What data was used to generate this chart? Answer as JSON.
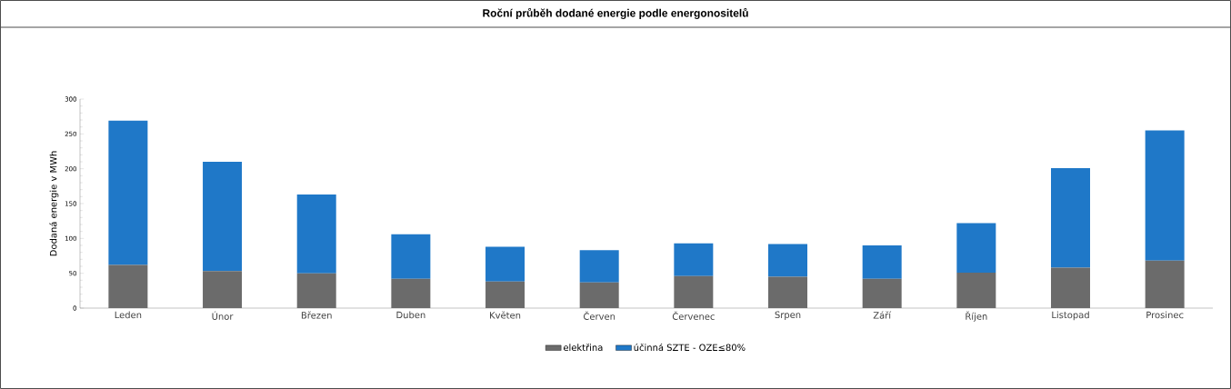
{
  "chart_data": {
    "type": "bar",
    "title": "Roční průběh dodané energie podle energonositelů",
    "ylabel": "Dodaná energie v MWh",
    "categories": [
      "Leden",
      "Únor",
      "Březen",
      "Duben",
      "Květen",
      "Červen",
      "Červenec",
      "Srpen",
      "Září",
      "Říjen",
      "Listopad",
      "Prosinec"
    ],
    "series": [
      {
        "name": "elektřina",
        "color": "#6b6b6b",
        "values": [
          62,
          53,
          50,
          42,
          38,
          37,
          46,
          45,
          42,
          51,
          58,
          68
        ]
      },
      {
        "name": "účinná SZTE - OZE≤80%",
        "color": "#1f78c8",
        "values": [
          207,
          157,
          113,
          64,
          50,
          46,
          47,
          47,
          48,
          71,
          143,
          187
        ]
      }
    ],
    "stacked": true,
    "ylim": [
      0,
      300
    ],
    "yticks": [
      0,
      50,
      100,
      150,
      200,
      250,
      300
    ],
    "grid": false,
    "legend": "bottom"
  }
}
